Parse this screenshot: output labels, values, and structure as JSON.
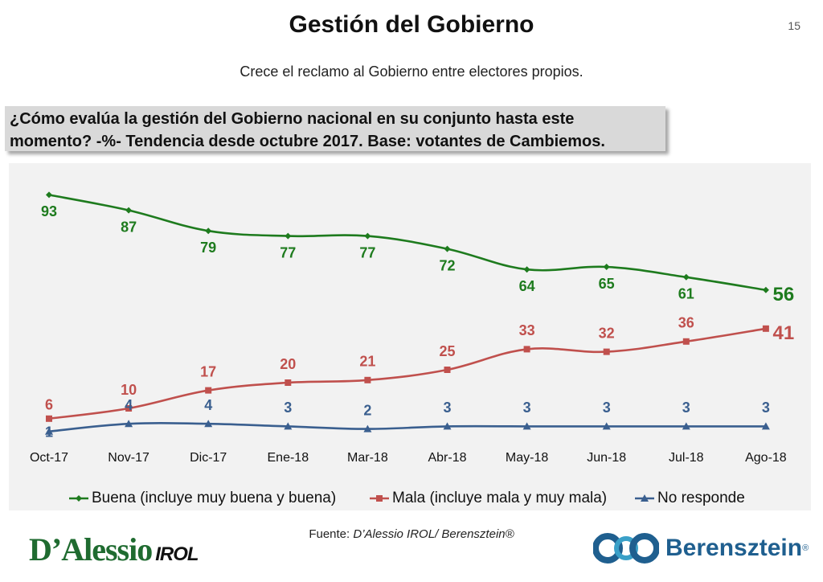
{
  "header": {
    "title": "Gestión del Gobierno",
    "page_number": "15",
    "subtitle": "Crece el reclamo al Gobierno entre electores propios.",
    "question_line1": "¿Cómo evalúa la gestión del Gobierno nacional en su conjunto hasta este",
    "question_line2": "momento? -%- Tendencia desde octubre 2017. Base: votantes de Cambiemos."
  },
  "footer": {
    "source_label": "Fuente: ",
    "source_value": "D’Alessio IROL/ Berensztein®",
    "logo_left_main": "D’Alessio",
    "logo_left_sub": "IROL",
    "logo_right": "Berensztein",
    "logo_right_mark": "®"
  },
  "chart_data": {
    "type": "line",
    "categories": [
      "Oct-17",
      "Nov-17",
      "Dic-17",
      "Ene-18",
      "Mar-18",
      "Abr-18",
      "May-18",
      "Jun-18",
      "Jul-18",
      "Ago-18"
    ],
    "ylim": [
      0,
      100
    ],
    "grid": false,
    "legend_position": "bottom",
    "series": [
      {
        "name": "Buena (incluye muy buena y buena)",
        "color": "#1e7b1e",
        "marker": "diamond",
        "values": [
          93,
          87,
          79,
          77,
          77,
          72,
          64,
          65,
          61,
          56
        ]
      },
      {
        "name": "Mala (incluye mala y muy mala)",
        "color": "#c0504d",
        "marker": "square",
        "values": [
          6,
          10,
          17,
          20,
          21,
          25,
          33,
          32,
          36,
          41
        ]
      },
      {
        "name": "No responde",
        "color": "#3a5f8f",
        "marker": "triangle",
        "values": [
          1,
          4,
          4,
          3,
          2,
          3,
          3,
          3,
          3,
          3
        ]
      }
    ]
  }
}
